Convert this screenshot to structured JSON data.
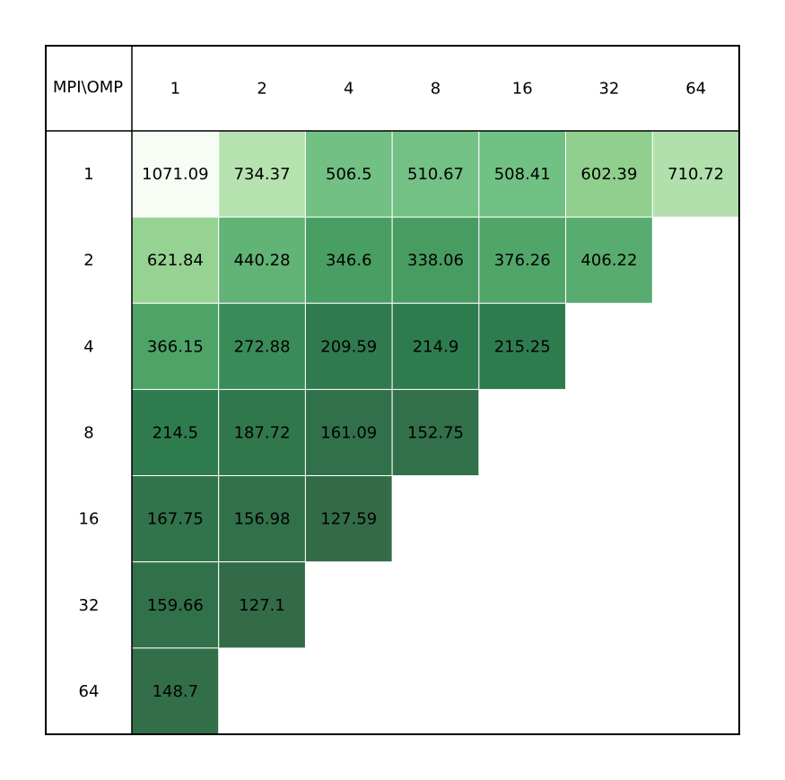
{
  "table": {
    "corner": "MPI\\OMP",
    "columns": [
      "1",
      "2",
      "4",
      "8",
      "16",
      "32",
      "64"
    ],
    "rows": [
      {
        "label": "1",
        "values": [
          1071.09,
          734.37,
          506.5,
          510.67,
          508.41,
          602.39,
          710.72
        ]
      },
      {
        "label": "2",
        "values": [
          621.84,
          440.28,
          346.6,
          338.06,
          376.26,
          406.22
        ]
      },
      {
        "label": "4",
        "values": [
          366.15,
          272.88,
          209.59,
          214.9,
          215.25
        ]
      },
      {
        "label": "8",
        "values": [
          214.5,
          187.72,
          161.09,
          152.75
        ]
      },
      {
        "label": "16",
        "values": [
          167.75,
          156.98,
          127.59
        ]
      },
      {
        "label": "32",
        "values": [
          159.66,
          127.1
        ]
      },
      {
        "label": "64",
        "values": [
          148.7
        ]
      }
    ],
    "color_stops": [
      [
        0,
        "#336b47"
      ],
      [
        0.1,
        "#2e7d4f"
      ],
      [
        0.25,
        "#4da366"
      ],
      [
        0.4,
        "#71c084"
      ],
      [
        0.5,
        "#8fcf8c"
      ],
      [
        0.62,
        "#b2e0ac"
      ],
      [
        1,
        "#f7fcf5"
      ]
    ]
  }
}
